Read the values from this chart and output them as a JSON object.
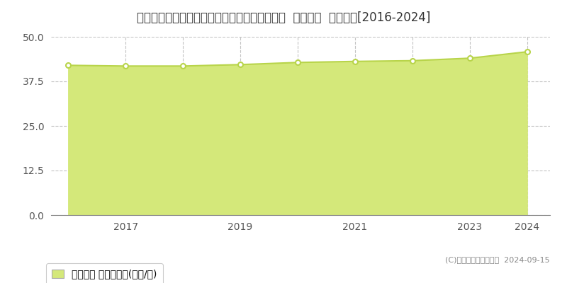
{
  "title": "千葉県松戸市小金きよしケ丘３丁目１６番１外  地価公示  地価推移[2016-2024]",
  "years": [
    2016,
    2017,
    2018,
    2019,
    2020,
    2021,
    2022,
    2023,
    2024
  ],
  "values": [
    42.0,
    41.8,
    41.8,
    42.2,
    42.8,
    43.1,
    43.3,
    44.0,
    45.8
  ],
  "line_color": "#b8d44a",
  "fill_color": "#d4e87a",
  "fill_alpha": 1.0,
  "marker_color": "#b8d44a",
  "marker_face": "white",
  "ylim": [
    0,
    50
  ],
  "yticks": [
    0,
    12.5,
    25,
    37.5,
    50
  ],
  "xtick_labels": [
    "2017",
    "2019",
    "2021",
    "2023",
    "2024"
  ],
  "xtick_positions": [
    2017,
    2019,
    2021,
    2023,
    2024
  ],
  "vgrid_positions": [
    2017,
    2018,
    2019,
    2020,
    2021,
    2022,
    2023,
    2024
  ],
  "grid_color": "#aaaaaa",
  "bg_color": "#ffffff",
  "legend_label": "地価公示 平均坪単価(万円/坪)",
  "copyright_text": "(C)土地価格ドットコム  2024-09-15",
  "title_fontsize": 12,
  "axis_fontsize": 10,
  "legend_fontsize": 10,
  "copyright_fontsize": 8
}
